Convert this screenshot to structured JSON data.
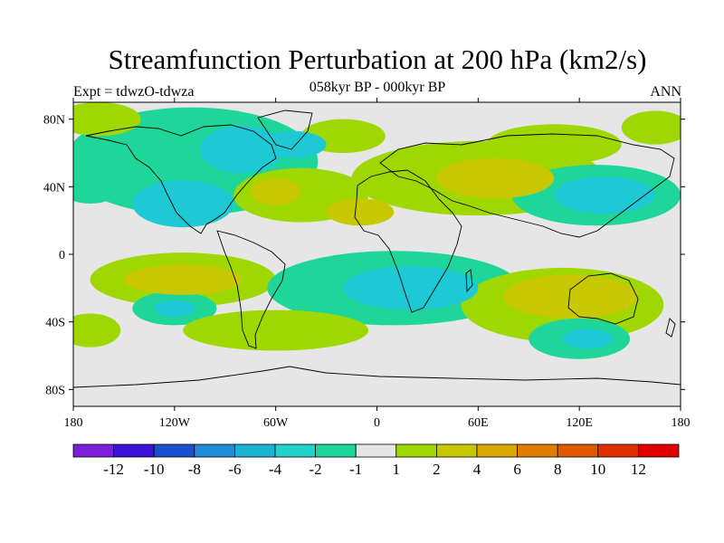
{
  "title": "Streamfunction Perturbation at 200 hPa (km2/s)",
  "subtitle": "058kyr BP - 000kyr BP",
  "left_label": "Expt = tdwzO-tdwza",
  "right_label": "ANN",
  "chart_data": {
    "type": "heatmap",
    "variable": "streamfunction perturbation",
    "units": "km2/s",
    "lon_range": [
      -180,
      180
    ],
    "lat_range": [
      -90,
      90
    ],
    "lon_ticks": [
      {
        "value": -180,
        "label": "180"
      },
      {
        "value": -120,
        "label": "120W"
      },
      {
        "value": -60,
        "label": "60W"
      },
      {
        "value": 0,
        "label": "0"
      },
      {
        "value": 60,
        "label": "60E"
      },
      {
        "value": 120,
        "label": "120E"
      },
      {
        "value": 180,
        "label": "180"
      }
    ],
    "lat_ticks": [
      {
        "value": 80,
        "label": "80N"
      },
      {
        "value": 40,
        "label": "40N"
      },
      {
        "value": 0,
        "label": "0"
      },
      {
        "value": -40,
        "label": "40S"
      },
      {
        "value": -80,
        "label": "80S"
      }
    ],
    "background_level": {
      "range": [
        -1,
        1
      ],
      "color": "#e6e6e6"
    },
    "regions": [
      {
        "lon": -110,
        "lat": 55,
        "rx": 75,
        "ry": 32,
        "level": -2
      },
      {
        "lon": -80,
        "lat": 62,
        "rx": 25,
        "ry": 14,
        "level": -4
      },
      {
        "lon": -115,
        "lat": 30,
        "rx": 30,
        "ry": 14,
        "level": -4
      },
      {
        "lon": -165,
        "lat": 80,
        "rx": 25,
        "ry": 10,
        "level": 2
      },
      {
        "lon": -170,
        "lat": 40,
        "rx": 18,
        "ry": 10,
        "level": -2
      },
      {
        "lon": -50,
        "lat": 65,
        "rx": 20,
        "ry": 8,
        "level": -4
      },
      {
        "lon": -45,
        "lat": 35,
        "rx": 40,
        "ry": 16,
        "level": 2
      },
      {
        "lon": -60,
        "lat": 37,
        "rx": 15,
        "ry": 8,
        "level": 4
      },
      {
        "lon": -20,
        "lat": 70,
        "rx": 25,
        "ry": 10,
        "level": 2
      },
      {
        "lon": 60,
        "lat": 45,
        "rx": 75,
        "ry": 22,
        "level": 2
      },
      {
        "lon": 70,
        "lat": 45,
        "rx": 35,
        "ry": 12,
        "level": 4
      },
      {
        "lon": -10,
        "lat": 25,
        "rx": 20,
        "ry": 8,
        "level": 4
      },
      {
        "lon": 130,
        "lat": 35,
        "rx": 50,
        "ry": 18,
        "level": -2
      },
      {
        "lon": 135,
        "lat": 35,
        "rx": 30,
        "ry": 11,
        "level": -4
      },
      {
        "lon": 165,
        "lat": 75,
        "rx": 20,
        "ry": 10,
        "level": 2
      },
      {
        "lon": 105,
        "lat": 65,
        "rx": 40,
        "ry": 12,
        "level": 2
      },
      {
        "lon": -115,
        "lat": -15,
        "rx": 55,
        "ry": 16,
        "level": 2
      },
      {
        "lon": -115,
        "lat": -15,
        "rx": 35,
        "ry": 9,
        "level": 4
      },
      {
        "lon": -120,
        "lat": -32,
        "rx": 25,
        "ry": 10,
        "level": -2
      },
      {
        "lon": -120,
        "lat": -32,
        "rx": 12,
        "ry": 5,
        "level": -4
      },
      {
        "lon": 10,
        "lat": -20,
        "rx": 75,
        "ry": 22,
        "level": -2
      },
      {
        "lon": 20,
        "lat": -20,
        "rx": 40,
        "ry": 13,
        "level": -4
      },
      {
        "lon": -60,
        "lat": -45,
        "rx": 55,
        "ry": 12,
        "level": 2
      },
      {
        "lon": 110,
        "lat": -30,
        "rx": 60,
        "ry": 22,
        "level": 2
      },
      {
        "lon": 115,
        "lat": -25,
        "rx": 40,
        "ry": 13,
        "level": 4
      },
      {
        "lon": 120,
        "lat": -50,
        "rx": 30,
        "ry": 12,
        "level": -2
      },
      {
        "lon": 125,
        "lat": -50,
        "rx": 15,
        "ry": 6,
        "level": -4
      },
      {
        "lon": -170,
        "lat": -45,
        "rx": 18,
        "ry": 10,
        "level": 2
      }
    ],
    "colorbar": {
      "colors": [
        "#7b1fd8",
        "#3a14d6",
        "#1a4fcf",
        "#1f8ad6",
        "#1cb2d2",
        "#22d0cc",
        "#1fd69a",
        "#e6e6e6",
        "#9ed800",
        "#c8c800",
        "#d8a800",
        "#e07d00",
        "#e05800",
        "#e03000",
        "#e00000"
      ],
      "labels": [
        "-12",
        "-10",
        "-8",
        "-6",
        "-4",
        "-2",
        "-1",
        "1",
        "2",
        "4",
        "6",
        "8",
        "10",
        "12"
      ],
      "level_colors": {
        "-4": "#1cc9d4",
        "-2": "#1fd69a",
        "2": "#9ed800",
        "4": "#c8c800"
      }
    }
  }
}
